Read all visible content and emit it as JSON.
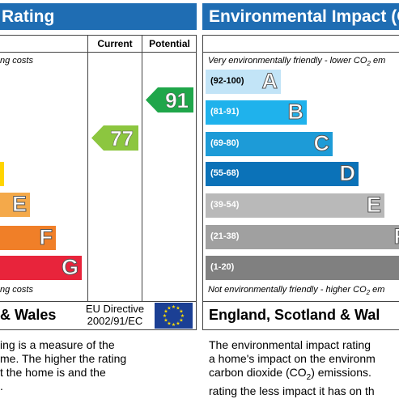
{
  "left": {
    "title": "Rating",
    "col_current": "Current",
    "col_potential": "Potential",
    "top_note": "ng costs",
    "bottom_note": "ng costs",
    "bands": [
      {
        "letter": "",
        "color": "#ffd500"
      },
      {
        "letter": "E",
        "color": "#f4a94a"
      },
      {
        "letter": "F",
        "color": "#f07f28"
      },
      {
        "letter": "G",
        "color": "#e8243b"
      }
    ],
    "current": {
      "value": "77",
      "band": "C",
      "color": "#8cc63f"
    },
    "potential": {
      "value": "91",
      "band": "B",
      "color": "#1fa64a"
    },
    "footer": "& Wales",
    "eu_line1": "EU Directive",
    "eu_line2": "2002/91/EC",
    "desc": [
      "ing is a measure of the",
      "me. The higher the rating",
      "t the home is and the",
      "."
    ]
  },
  "right": {
    "title": "Environmental Impact (C",
    "top_note": "Very environmentally friendly - lower CO",
    "top_note_sub": "2",
    "top_note_end": " em",
    "bottom_note": "Not environmentally friendly - higher CO",
    "bottom_note_sub": "2",
    "bottom_note_end": " em",
    "bands": [
      {
        "range": "(92-100)",
        "letter": "A",
        "color": "#c2e4f7"
      },
      {
        "range": "(81-91)",
        "letter": "B",
        "color": "#1fb2ec"
      },
      {
        "range": "(69-80)",
        "letter": "C",
        "color": "#1d9bd7"
      },
      {
        "range": "(55-68)",
        "letter": "D",
        "color": "#0b72b8"
      },
      {
        "range": "(39-54)",
        "letter": "E",
        "color": "#b9b9b9"
      },
      {
        "range": "(21-38)",
        "letter": "F",
        "color": "#a0a0a0"
      },
      {
        "range": "(1-20)",
        "letter": "",
        "color": "#808080"
      }
    ],
    "footer": "England, Scotland & Wal",
    "desc": [
      "The environmental impact rating",
      "a home's impact on the environm",
      "carbon dioxide (CO",
      ") emissions.",
      "rating the less impact it has on th"
    ],
    "desc_sub": "2"
  },
  "chart_data": {
    "type": "bar",
    "title": "Environmental Impact",
    "categories": [
      "A",
      "B",
      "C",
      "D",
      "E",
      "F",
      "G"
    ],
    "ranges": [
      "92-100",
      "81-91",
      "69-80",
      "55-68",
      "39-54",
      "21-38",
      "1-20"
    ],
    "energy_rating": {
      "current": 77,
      "potential": 91
    }
  }
}
